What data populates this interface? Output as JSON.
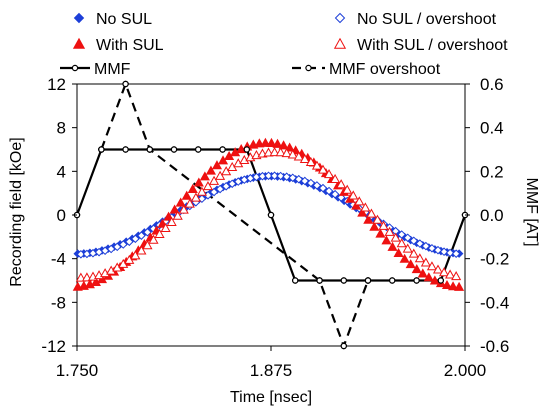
{
  "chart_data": {
    "type": "scatter",
    "title": "",
    "xlabel": "Time [nsec]",
    "ylabel_left": "Recording field [kOe]",
    "ylabel_right": "MMF [AT]",
    "xlim": [
      1.75,
      2.0
    ],
    "ylim_left": [
      -12,
      12
    ],
    "ylim_right": [
      -0.6,
      0.6
    ],
    "xticks": [
      "1.750",
      "1.875",
      "2.000"
    ],
    "yticks_left": [
      "12",
      "8",
      "4",
      "0",
      "-4",
      "-8",
      "-12"
    ],
    "yticks_right": [
      "0.6",
      "0.4",
      "0.2",
      "0.0",
      "-0.2",
      "-0.4",
      "-0.6"
    ],
    "grid": false,
    "legend_position": "top",
    "colors": {
      "no_sul": "#1d3fd8",
      "with_sul": "#ee1111",
      "mmf": "#000000"
    },
    "series": [
      {
        "name": "No SUL",
        "axis": "left",
        "marker": "filled-diamond",
        "color": "#1d3fd8",
        "x0": 1.7505,
        "dx": 0.0039,
        "amplitude": 3.55,
        "period": 0.25,
        "phase": 1.8745,
        "count": 64
      },
      {
        "name": "No SUL / overshoot",
        "axis": "left",
        "marker": "open-diamond",
        "color": "#1d3fd8",
        "x0": 1.7525,
        "dx": 0.0039,
        "amplitude": 3.6,
        "period": 0.25,
        "phase": 1.876,
        "count": 63
      },
      {
        "name": "With SUL",
        "axis": "left",
        "marker": "filled-triangle",
        "color": "#ee1111",
        "x0": 1.7505,
        "dx": 0.0039,
        "amplitude": 6.6,
        "period": 0.25,
        "phase": 1.8725,
        "count": 64
      },
      {
        "name": "With SUL / overshoot",
        "axis": "left",
        "marker": "open-triangle",
        "color": "#ee1111",
        "x0": 1.7525,
        "dx": 0.0039,
        "amplitude": 5.75,
        "period": 0.25,
        "phase": 1.878,
        "count": 63
      },
      {
        "name": "MMF",
        "axis": "right",
        "marker": "open-circle",
        "line": "solid",
        "color": "#000000",
        "x": [
          1.75,
          1.7657,
          1.7813,
          1.7969,
          1.8125,
          1.8281,
          1.8438,
          1.8594,
          1.875,
          1.8906,
          1.9063,
          1.9219,
          1.9375,
          1.9531,
          1.9688,
          1.9844,
          2.0
        ],
        "y": [
          0.0,
          0.3,
          0.3,
          0.3,
          0.3,
          0.3,
          0.3,
          0.3,
          0.0,
          -0.3,
          -0.3,
          -0.3,
          -0.3,
          -0.3,
          -0.3,
          -0.3,
          0.0
        ]
      },
      {
        "name": "MMF overshoot",
        "axis": "right",
        "marker": "open-circle",
        "line": "dashed",
        "color": "#000000",
        "x": [
          1.7657,
          1.7813,
          1.7969,
          1.9063,
          1.9219,
          1.9375
        ],
        "y": [
          0.3,
          0.6,
          0.3,
          -0.3,
          -0.6,
          -0.3
        ]
      }
    ]
  }
}
